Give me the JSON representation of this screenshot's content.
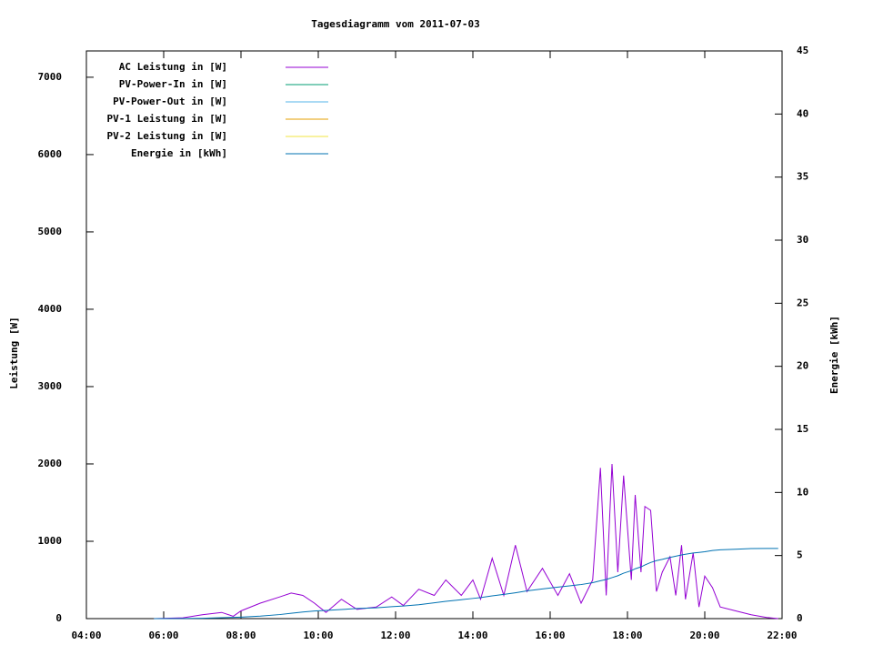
{
  "chart_data": {
    "type": "line",
    "title": "Tagesdiagramm vom 2011-07-03",
    "ylabel": "Leistung [W]",
    "y2label": "Energie [kWh]",
    "x": [
      5.75,
      6.5,
      7.0,
      7.5,
      7.8,
      8.0,
      8.5,
      9.0,
      9.3,
      9.6,
      9.9,
      10.2,
      10.6,
      11.0,
      11.5,
      11.9,
      12.2,
      12.6,
      13.0,
      13.3,
      13.7,
      14.0,
      14.2,
      14.5,
      14.8,
      15.1,
      15.4,
      15.8,
      16.2,
      16.5,
      16.8,
      17.1,
      17.3,
      17.45,
      17.6,
      17.75,
      17.9,
      18.1,
      18.2,
      18.35,
      18.45,
      18.6,
      18.75,
      18.9,
      19.1,
      19.25,
      19.4,
      19.5,
      19.7,
      19.85,
      20.0,
      20.2,
      20.4,
      20.8,
      21.2,
      21.6,
      21.9
    ],
    "xlim": [
      4,
      22
    ],
    "xticks": [
      {
        "value": 4,
        "label": "04:00"
      },
      {
        "value": 6,
        "label": "06:00"
      },
      {
        "value": 8,
        "label": "08:00"
      },
      {
        "value": 10,
        "label": "10:00"
      },
      {
        "value": 12,
        "label": "12:00"
      },
      {
        "value": 14,
        "label": "14:00"
      },
      {
        "value": 16,
        "label": "16:00"
      },
      {
        "value": 18,
        "label": "18:00"
      },
      {
        "value": 20,
        "label": "20:00"
      },
      {
        "value": 22,
        "label": "22:00"
      }
    ],
    "ylim": [
      0,
      7340
    ],
    "yticks": [
      0,
      1000,
      2000,
      3000,
      4000,
      5000,
      6000,
      7000
    ],
    "y2lim": [
      0,
      45
    ],
    "y2ticks": [
      0,
      5,
      10,
      15,
      20,
      25,
      30,
      35,
      40,
      45
    ],
    "series": [
      {
        "name": "AC Leistung in [W]",
        "color": "#9400d3",
        "values": [
          0,
          10,
          50,
          80,
          30,
          100,
          200,
          280,
          330,
          300,
          200,
          80,
          250,
          120,
          150,
          280,
          170,
          380,
          300,
          500,
          300,
          500,
          250,
          780,
          300,
          950,
          350,
          650,
          300,
          580,
          200,
          500,
          1950,
          300,
          2000,
          600,
          1850,
          500,
          1600,
          600,
          1450,
          1400,
          350,
          600,
          800,
          300,
          950,
          250,
          850,
          150,
          550,
          400,
          150,
          100,
          50,
          15,
          0
        ]
      },
      {
        "name": "PV-Power-In in [W]",
        "color": "#009e73",
        "values": [
          null,
          null,
          null,
          null,
          null,
          null,
          null,
          null,
          null,
          null,
          null,
          null,
          null,
          null,
          null,
          null,
          null,
          null,
          null,
          null,
          null,
          null,
          null,
          null,
          null,
          null,
          null,
          null,
          null,
          null,
          null,
          null,
          null,
          null,
          null,
          null,
          null,
          null,
          null,
          null,
          null,
          null,
          null,
          null,
          null,
          null,
          null,
          null,
          null,
          null,
          null,
          null,
          null,
          null,
          null,
          null,
          null
        ]
      },
      {
        "name": "PV-Power-Out in [W]",
        "color": "#56b4e9",
        "values": [
          null,
          null,
          null,
          null,
          null,
          null,
          null,
          null,
          null,
          null,
          null,
          null,
          null,
          null,
          null,
          null,
          null,
          null,
          null,
          null,
          null,
          null,
          null,
          null,
          null,
          null,
          null,
          null,
          null,
          null,
          null,
          null,
          null,
          null,
          null,
          null,
          null,
          null,
          null,
          null,
          null,
          null,
          null,
          null,
          null,
          null,
          null,
          null,
          null,
          null,
          null,
          null,
          null,
          null,
          null,
          null,
          null
        ]
      },
      {
        "name": "PV-1 Leistung in [W]",
        "color": "#e69f00",
        "values": [
          null,
          null,
          null,
          null,
          null,
          null,
          null,
          null,
          null,
          null,
          null,
          null,
          null,
          null,
          null,
          null,
          null,
          null,
          null,
          null,
          null,
          null,
          null,
          null,
          null,
          null,
          null,
          null,
          null,
          null,
          null,
          null,
          null,
          null,
          null,
          null,
          null,
          null,
          null,
          null,
          null,
          null,
          null,
          null,
          null,
          null,
          null,
          null,
          null,
          null,
          null,
          null,
          null,
          null,
          null,
          null,
          null
        ]
      },
      {
        "name": "PV-2 Leistung in [W]",
        "color": "#f0e442",
        "values": [
          null,
          null,
          null,
          null,
          null,
          null,
          null,
          null,
          null,
          null,
          null,
          null,
          null,
          null,
          null,
          null,
          null,
          null,
          null,
          null,
          null,
          null,
          null,
          null,
          null,
          null,
          null,
          null,
          null,
          null,
          null,
          null,
          null,
          null,
          null,
          null,
          null,
          null,
          null,
          null,
          null,
          null,
          null,
          null,
          null,
          null,
          null,
          null,
          null,
          null,
          null,
          null,
          null,
          null,
          null,
          null,
          null
        ]
      },
      {
        "name": "Energie in [kWh]",
        "color": "#0072b2",
        "axis": "y2",
        "values": [
          0,
          0.01,
          0.03,
          0.07,
          0.1,
          0.12,
          0.2,
          0.32,
          0.42,
          0.52,
          0.6,
          0.65,
          0.72,
          0.8,
          0.86,
          0.95,
          1.0,
          1.1,
          1.25,
          1.37,
          1.5,
          1.6,
          1.67,
          1.8,
          1.92,
          2.05,
          2.2,
          2.35,
          2.5,
          2.6,
          2.7,
          2.85,
          3.0,
          3.1,
          3.25,
          3.4,
          3.6,
          3.8,
          3.95,
          4.1,
          4.25,
          4.45,
          4.6,
          4.7,
          4.85,
          4.95,
          5.05,
          5.1,
          5.2,
          5.25,
          5.3,
          5.4,
          5.45,
          5.5,
          5.55,
          5.56,
          5.56
        ]
      }
    ],
    "legend": "top-left"
  }
}
